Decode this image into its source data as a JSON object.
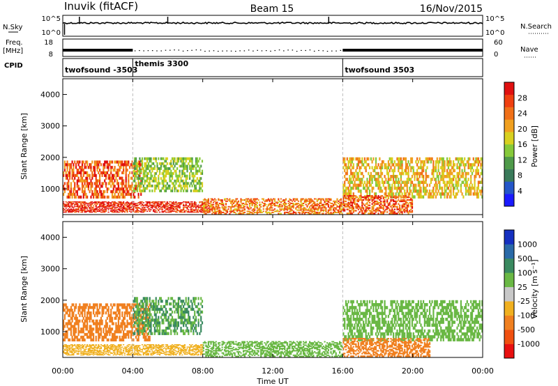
{
  "header": {
    "station": "Inuvik (fitACF)",
    "beam": "Beam 15",
    "date": "16/Nov/2015"
  },
  "strips": {
    "nsky_label": "N.Sky",
    "nsky_ticks": [
      "10^5",
      "10^0"
    ],
    "nsearch_label": "N.Search",
    "nsearch_ticks": [
      "10^5",
      "10^0"
    ],
    "freq_label_1": "Freq.",
    "freq_label_2": "[MHz]",
    "freq_ticks": [
      "18",
      "8"
    ],
    "nave_label": "Nave",
    "nave_ticks": [
      "60",
      "0"
    ],
    "cpid_label": "CPID"
  },
  "cpid_segments": [
    {
      "label": "twofsound -3503",
      "start_hour": 0.0,
      "end_hour": 4.0
    },
    {
      "label": "themis 3300",
      "start_hour": 4.0,
      "end_hour": 16.0
    },
    {
      "label": "twofsound 3503",
      "start_hour": 16.0,
      "end_hour": 24.0
    }
  ],
  "time_axis": {
    "label": "Time UT",
    "ticks": [
      "00:00",
      "04:00",
      "08:00",
      "12:00",
      "16:00",
      "20:00",
      "00:00"
    ],
    "range_hours": [
      0,
      24
    ]
  },
  "range_axis": {
    "label": "Slant Range [km]",
    "ticks": [
      "1000",
      "2000",
      "3000",
      "4000"
    ],
    "range_km": [
      180,
      4500
    ]
  },
  "power_scale": {
    "label": "Power [dB]",
    "ticks": [
      "4",
      "8",
      "12",
      "16",
      "20",
      "24",
      "28"
    ],
    "colors": [
      "#1a1aff",
      "#2456c8",
      "#3a7a5a",
      "#4f9a4a",
      "#86c93a",
      "#d8d020",
      "#f0a020",
      "#f07018",
      "#f04010",
      "#e01010"
    ]
  },
  "velocity_scale": {
    "label": "Velocity [m s⁻¹]",
    "ticks": [
      "1000",
      "500",
      "100",
      "25",
      "-25",
      "-100",
      "-500",
      "-1000"
    ],
    "colors": [
      "#1530c0",
      "#2a6aa8",
      "#3a8a60",
      "#6ab845",
      "#c8c8c8",
      "#f0b020",
      "#f08020",
      "#f05010",
      "#e81010"
    ]
  },
  "chart_data": [
    {
      "type": "heatmap",
      "title": "Power",
      "xlabel": "Time UT",
      "ylabel": "Slant Range [km]",
      "xlim": [
        0,
        24
      ],
      "ylim": [
        180,
        4500
      ],
      "colorbar": {
        "label": "Power [dB]",
        "ticks": [
          4,
          8,
          12,
          16,
          20,
          24,
          28
        ]
      },
      "regions": [
        {
          "t_start": 0.0,
          "t_end": 4.5,
          "r_min": 700,
          "r_max": 1900,
          "power_db": 24
        },
        {
          "t_start": 0.0,
          "t_end": 8.5,
          "r_min": 250,
          "r_max": 600,
          "power_db": 28
        },
        {
          "t_start": 4.0,
          "t_end": 8.0,
          "r_min": 900,
          "r_max": 2000,
          "power_db": 14
        },
        {
          "t_start": 8.0,
          "t_end": 16.0,
          "r_min": 200,
          "r_max": 700,
          "power_db": 22
        },
        {
          "t_start": 16.0,
          "t_end": 24.0,
          "r_min": 700,
          "r_max": 2000,
          "power_db": 18
        },
        {
          "t_start": 16.0,
          "t_end": 20.0,
          "r_min": 200,
          "r_max": 800,
          "power_db": 24
        }
      ]
    },
    {
      "type": "heatmap",
      "title": "Velocity",
      "xlabel": "Time UT",
      "ylabel": "Slant Range [km]",
      "xlim": [
        0,
        24
      ],
      "ylim": [
        180,
        4500
      ],
      "colorbar": {
        "label": "Velocity [m s^-1]",
        "ticks": [
          1000,
          500,
          100,
          25,
          -25,
          -100,
          -500,
          -1000
        ]
      },
      "regions": [
        {
          "t_start": 0.0,
          "t_end": 5.0,
          "r_min": 700,
          "r_max": 1900,
          "velocity": -200
        },
        {
          "t_start": 4.0,
          "t_end": 8.0,
          "r_min": 900,
          "r_max": 2100,
          "velocity": 100
        },
        {
          "t_start": 0.0,
          "t_end": 8.0,
          "r_min": 250,
          "r_max": 600,
          "velocity": -40
        },
        {
          "t_start": 8.0,
          "t_end": 16.0,
          "r_min": 200,
          "r_max": 700,
          "velocity": 60
        },
        {
          "t_start": 16.0,
          "t_end": 24.0,
          "r_min": 700,
          "r_max": 2000,
          "velocity": 80
        },
        {
          "t_start": 16.0,
          "t_end": 21.0,
          "r_min": 200,
          "r_max": 800,
          "velocity": -150
        }
      ]
    }
  ]
}
